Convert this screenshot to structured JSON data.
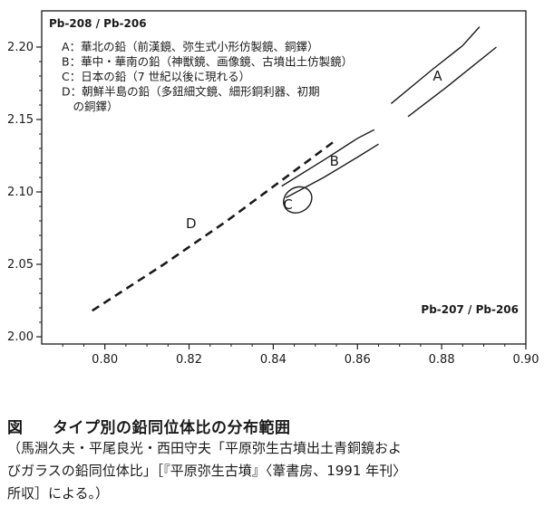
{
  "chart_data": {
    "type": "scatter",
    "title": "Pb-208 / Pb-206",
    "xlabel": "Pb-207 / Pb-206",
    "ylabel": "Pb-208 / Pb-206",
    "xlim": [
      0.785,
      0.9
    ],
    "ylim": [
      1.995,
      2.225
    ],
    "xticks": [
      "0.80",
      "0.82",
      "0.84",
      "0.86",
      "0.88",
      "0.90"
    ],
    "yticks": [
      "2.00",
      "2.05",
      "2.10",
      "2.15",
      "2.20"
    ],
    "grid": false,
    "legend_position": "top-left",
    "legend": [
      "A：華北の鉛（前漢鏡、弥生式小形仿製鏡、銅鐸）",
      "B：華中・華南の鉛（神獣鏡、画像鏡、古墳出土仿製鏡）",
      "C：日本の鉛（7 世紀以後に現れる）",
      "D：朝鮮半島の鉛（多鈕細文鏡、細形銅利器、初期",
      "　の銅鐸）"
    ],
    "series": [
      {
        "name": "A",
        "style": "band",
        "upper": [
          [
            0.868,
            2.161
          ],
          [
            0.878,
            2.185
          ],
          [
            0.885,
            2.201
          ],
          [
            0.889,
            2.214
          ]
        ],
        "lower": [
          [
            0.872,
            2.152
          ],
          [
            0.881,
            2.172
          ],
          [
            0.887,
            2.186
          ],
          [
            0.893,
            2.2
          ]
        ]
      },
      {
        "name": "B",
        "style": "band",
        "upper": [
          [
            0.842,
            2.104
          ],
          [
            0.852,
            2.122
          ],
          [
            0.86,
            2.137
          ],
          [
            0.864,
            2.143
          ]
        ],
        "lower": [
          [
            0.843,
            2.096
          ],
          [
            0.852,
            2.11
          ],
          [
            0.86,
            2.124
          ],
          [
            0.865,
            2.133
          ]
        ]
      },
      {
        "name": "C",
        "style": "ellipse",
        "center": [
          0.8458,
          2.0945
        ],
        "rx": 0.0035,
        "ry": 0.0085
      },
      {
        "name": "D",
        "style": "dashed",
        "points": [
          [
            0.797,
            2.018
          ],
          [
            0.814,
            2.05
          ],
          [
            0.829,
            2.08
          ],
          [
            0.842,
            2.108
          ],
          [
            0.855,
            2.136
          ]
        ]
      }
    ],
    "annotations": [
      {
        "text": "A",
        "x": 0.879,
        "y": 2.177
      },
      {
        "text": "B",
        "x": 0.8545,
        "y": 2.118
      },
      {
        "text": "C",
        "x": 0.8435,
        "y": 2.088
      },
      {
        "text": "D",
        "x": 0.8205,
        "y": 2.075
      }
    ]
  },
  "caption": {
    "figure_label": "図",
    "title": "タイプ別の鉛同位体比の分布範囲",
    "source_lines": [
      "（馬淵久夫・平尾良光・西田守夫「平原弥生古墳出土青銅鏡およ",
      "びガラスの鉛同位体比」［『平原弥生古墳』〈葦書房、1991 年刊〉",
      "所収］による。）"
    ]
  },
  "colors": {
    "ink": "#1a1a1a",
    "background": "#ffffff"
  }
}
